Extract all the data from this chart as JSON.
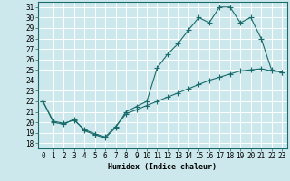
{
  "xlabel": "Humidex (Indice chaleur)",
  "ylabel": "",
  "bg_color": "#cce8ec",
  "line_color": "#1a6b6b",
  "grid_color": "#ffffff",
  "xlim": [
    -0.5,
    23.5
  ],
  "ylim": [
    17.5,
    31.5
  ],
  "yticks": [
    18,
    19,
    20,
    21,
    22,
    23,
    24,
    25,
    26,
    27,
    28,
    29,
    30,
    31
  ],
  "xticks": [
    0,
    1,
    2,
    3,
    4,
    5,
    6,
    7,
    8,
    9,
    10,
    11,
    12,
    13,
    14,
    15,
    16,
    17,
    18,
    19,
    20,
    21,
    22,
    23
  ],
  "line1_x": [
    0,
    1,
    2,
    3,
    4,
    5,
    6,
    7,
    8,
    9,
    10,
    11,
    12,
    13,
    14,
    15,
    16,
    17,
    18,
    19,
    20,
    21,
    22,
    23
  ],
  "line1_y": [
    22.0,
    20.0,
    19.8,
    20.3,
    19.2,
    18.8,
    18.5,
    19.5,
    21.0,
    21.5,
    22.0,
    25.2,
    26.5,
    27.5,
    28.8,
    30.0,
    29.5,
    31.0,
    31.0,
    29.5,
    30.0,
    28.0,
    25.0,
    24.8
  ],
  "line2_x": [
    0,
    1,
    2,
    3,
    4,
    5,
    6,
    7,
    8,
    9,
    10,
    11,
    12,
    13,
    14,
    15,
    16,
    17,
    18,
    19,
    20,
    21,
    22,
    23
  ],
  "line2_y": [
    22.0,
    20.1,
    19.9,
    20.2,
    19.3,
    18.9,
    18.6,
    19.6,
    20.8,
    21.2,
    21.6,
    22.0,
    22.4,
    22.8,
    23.2,
    23.6,
    24.0,
    24.3,
    24.6,
    24.9,
    25.0,
    25.1,
    24.9,
    24.8
  ],
  "marker": "+",
  "markersize": 4,
  "linewidth": 0.8,
  "axis_fontsize": 6,
  "tick_fontsize": 5.5
}
